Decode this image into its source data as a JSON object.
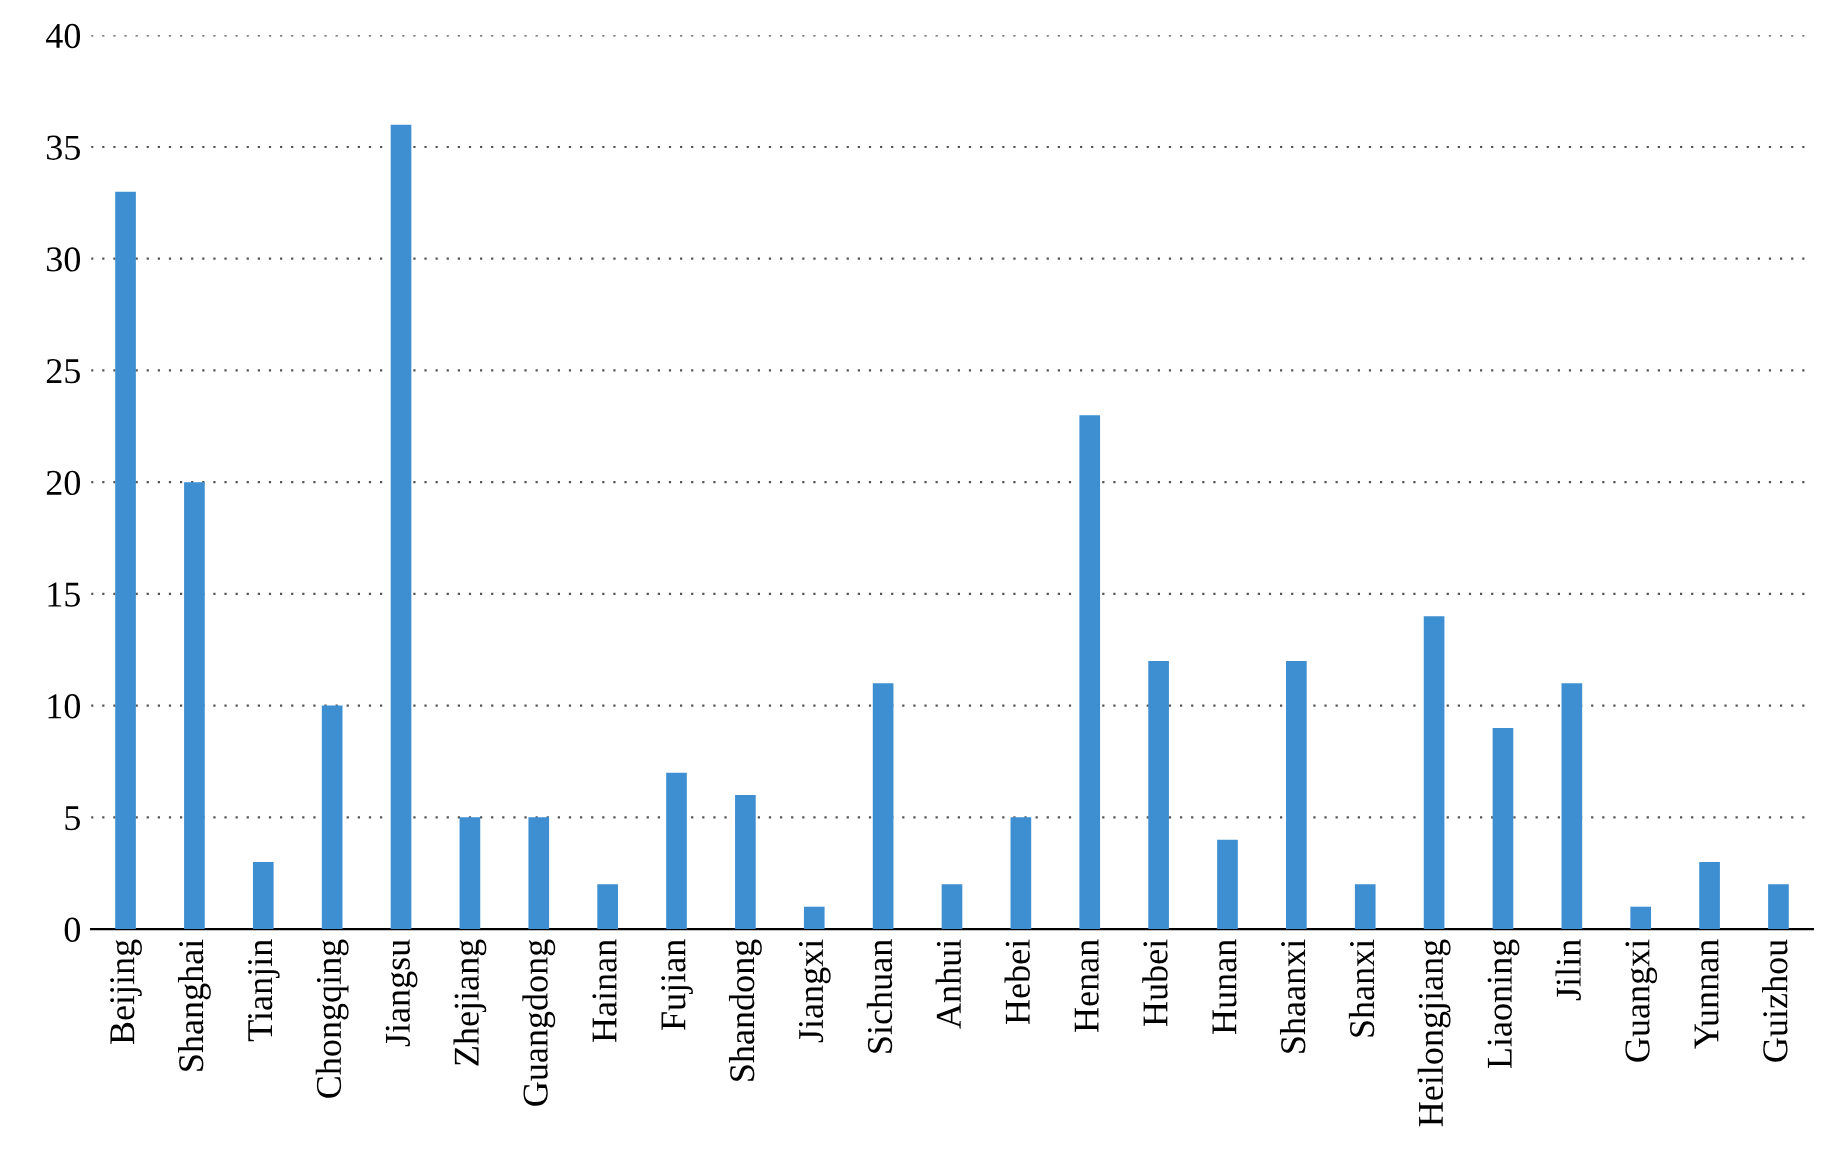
{
  "chart_data": {
    "type": "bar",
    "categories": [
      "Beijing",
      "Shanghai",
      "Tianjin",
      "Chongqing",
      "Jiangsu",
      "Zhejiang",
      "Guangdong",
      "Hainan",
      "Fujian",
      "Shandong",
      "Jiangxi",
      "Sichuan",
      "Anhui",
      "Hebei",
      "Henan",
      "Hubei",
      "Hunan",
      "Shaanxi",
      "Shanxi",
      "Heilongjiang",
      "Liaoning",
      "Jilin",
      "Guangxi",
      "Yunnan",
      "Guizhou"
    ],
    "values": [
      33,
      20,
      3,
      10,
      36,
      5,
      5,
      2,
      7,
      6,
      1,
      11,
      2,
      5,
      23,
      12,
      4,
      12,
      2,
      14,
      9,
      11,
      1,
      3,
      2
    ],
    "color": "#3d8fd1",
    "ylim": [
      0,
      40
    ],
    "yticks": [
      0,
      5,
      10,
      15,
      20,
      25,
      30,
      35,
      40
    ],
    "grid": "y"
  }
}
